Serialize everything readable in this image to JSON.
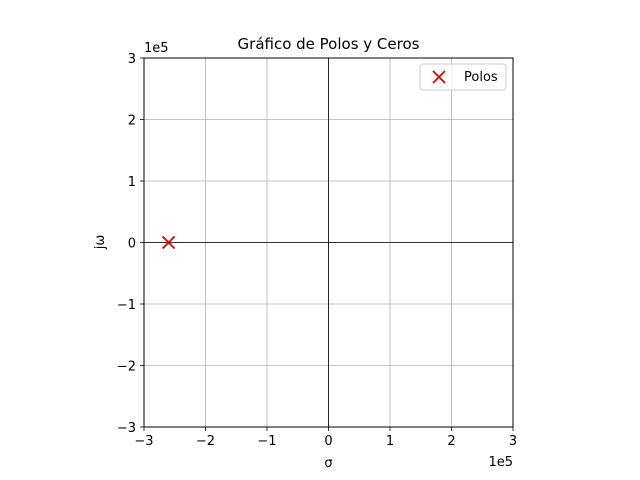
{
  "chart_data": {
    "type": "scatter",
    "title": "Gráfico de Polos y Ceros",
    "xlabel": "σ",
    "ylabel": "jω",
    "xlim": [
      -3,
      3
    ],
    "ylim": [
      -3,
      3
    ],
    "x_ticks": [
      "−3",
      "−2",
      "−1",
      "0",
      "1",
      "2",
      "3"
    ],
    "y_ticks": [
      "−3",
      "−2",
      "−1",
      "0",
      "1",
      "2",
      "3"
    ],
    "x_offset_label": "1e5",
    "y_offset_label": "1e5",
    "grid": true,
    "legend_position": "top-right",
    "series": [
      {
        "name": "Polos",
        "marker": "x",
        "color": "#e00000",
        "points": [
          {
            "x": -2.6,
            "y": 0
          }
        ]
      }
    ]
  }
}
